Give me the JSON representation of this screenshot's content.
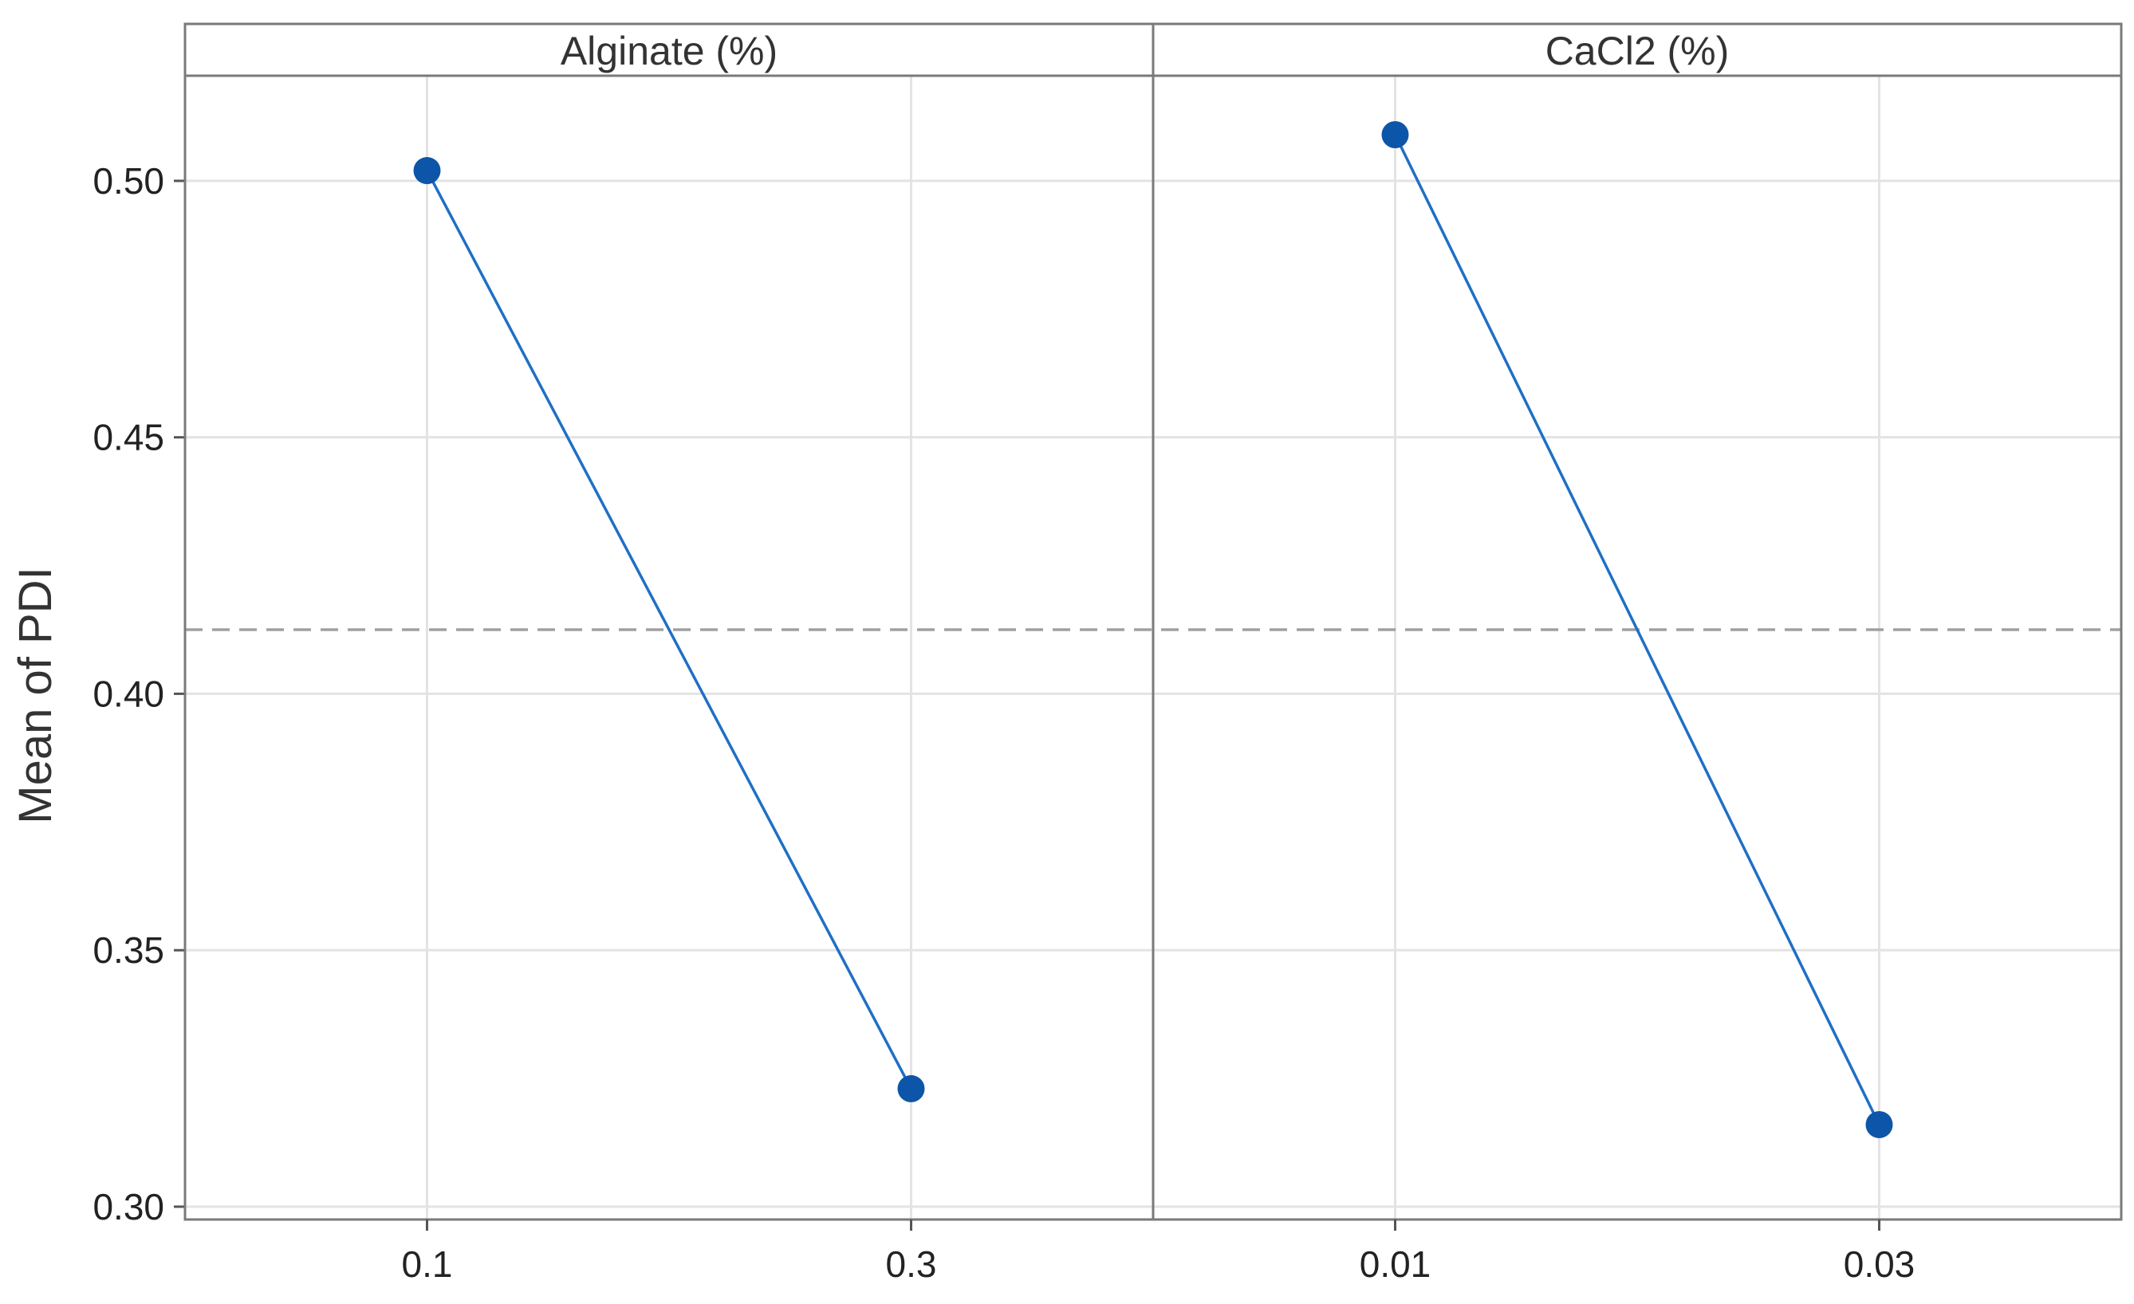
{
  "chart_data": {
    "type": "line",
    "ylabel": "Mean of PDI",
    "ylim": [
      0.2975,
      0.5205
    ],
    "yticks": [
      0.3,
      0.35,
      0.4,
      0.45,
      0.5
    ],
    "ytick_labels": [
      "0.30",
      "0.35",
      "0.40",
      "0.45",
      "0.50"
    ],
    "grid": true,
    "reference_line": {
      "value": 0.4125,
      "style": "dashed"
    },
    "line_color": "#1f6fc5",
    "marker_color": "#0d55a8",
    "panels": [
      {
        "title": "Alginate (%)",
        "categories": [
          "0.1",
          "0.3"
        ],
        "values": [
          0.502,
          0.323
        ]
      },
      {
        "title": "CaCl2 (%)",
        "categories": [
          "0.01",
          "0.03"
        ],
        "values": [
          0.509,
          0.316
        ]
      }
    ]
  }
}
